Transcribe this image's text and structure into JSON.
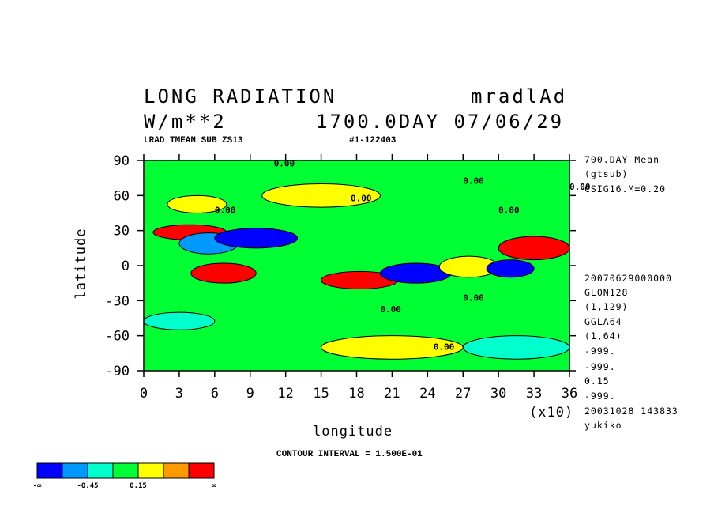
{
  "header": {
    "title": "LONG RADIATION",
    "variable": "mradlAd",
    "units": "W/m**2",
    "datetime": "1700.0DAY 07/06/29",
    "subtitle": "LRAD TMEAN SUB ZS13",
    "run_id": "#1-122403"
  },
  "side_info": {
    "mean": "700.DAY Mean",
    "source": "(gtsub)",
    "sigma": "CSIG16.M=0.20",
    "date_code": "20070629000000",
    "glon": "GLON128",
    "glon_range": "(1,129)",
    "ggla": "GGLA64",
    "ggla_range": "(1,64)",
    "miss1": "-999.",
    "miss2": "-999.",
    "value": "0.15",
    "miss3": "-999.",
    "stamp": "20031028 143833",
    "user": "yukiko"
  },
  "chart_data": {
    "type": "heatmap",
    "title": "LONG RADIATION",
    "xlabel": "longitude",
    "ylabel": "latitude",
    "x_multiplier": "(x10)",
    "xlim": [
      0,
      36
    ],
    "ylim": [
      -90,
      90
    ],
    "x_ticks": [
      "0",
      "3",
      "6",
      "9",
      "12",
      "15",
      "18",
      "21",
      "24",
      "27",
      "30",
      "33",
      "36"
    ],
    "y_ticks": [
      "90",
      "60",
      "30",
      "0",
      "-30",
      "-60",
      "-90"
    ],
    "contour_interval_label": "CONTOUR INTERVAL = 1.500E-01",
    "contour_labels": [
      "0.00",
      "0.00",
      "0.00",
      "0.00",
      "0.00",
      "0.00",
      "0.00",
      "0.00",
      "0.00"
    ],
    "colorbar": {
      "colors": [
        "#0000ff",
        "#0099ff",
        "#00ffcc",
        "#00ff33",
        "#ffff00",
        "#ff9900",
        "#ff0000"
      ],
      "labels": [
        "-∞",
        "-0.45",
        "0.15",
        "∞"
      ]
    },
    "regions": [
      {
        "lon": [
          0,
          360
        ],
        "lat": [
          -90,
          90
        ],
        "level": 3
      },
      {
        "lon": [
          8,
          70
        ],
        "lat": [
          22,
          35
        ],
        "level": 6
      },
      {
        "lon": [
          30,
          80
        ],
        "lat": [
          10,
          28
        ],
        "level": 1
      },
      {
        "lon": [
          40,
          95
        ],
        "lat": [
          -15,
          2
        ],
        "level": 6
      },
      {
        "lon": [
          60,
          130
        ],
        "lat": [
          15,
          32
        ],
        "level": 0
      },
      {
        "lon": [
          150,
          215
        ],
        "lat": [
          -20,
          -5
        ],
        "level": 6
      },
      {
        "lon": [
          200,
          260
        ],
        "lat": [
          -15,
          2
        ],
        "level": 0
      },
      {
        "lon": [
          250,
          300
        ],
        "lat": [
          -10,
          8
        ],
        "level": 4
      },
      {
        "lon": [
          300,
          360
        ],
        "lat": [
          5,
          25
        ],
        "level": 6
      },
      {
        "lon": [
          290,
          330
        ],
        "lat": [
          -10,
          5
        ],
        "level": 0
      },
      {
        "lon": [
          150,
          270
        ],
        "lat": [
          -80,
          -60
        ],
        "level": 4
      },
      {
        "lon": [
          0,
          60
        ],
        "lat": [
          -55,
          -40
        ],
        "level": 2
      },
      {
        "lon": [
          270,
          360
        ],
        "lat": [
          -80,
          -60
        ],
        "level": 2
      },
      {
        "lon": [
          100,
          200
        ],
        "lat": [
          50,
          70
        ],
        "level": 4
      },
      {
        "lon": [
          20,
          70
        ],
        "lat": [
          45,
          60
        ],
        "level": 4
      }
    ]
  }
}
